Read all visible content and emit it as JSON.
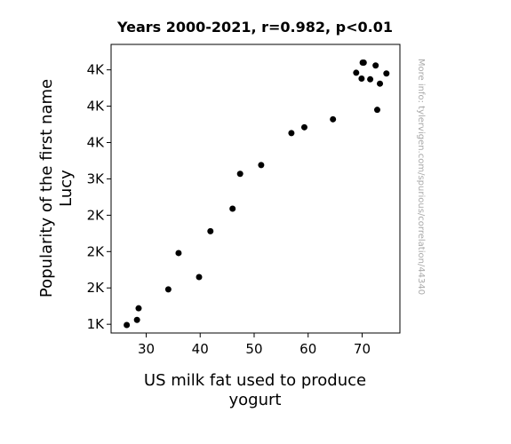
{
  "chart_data": {
    "type": "scatter",
    "title": "Years 2000-2021, r=0.982, p<0.01",
    "xlabel": [
      "US milk fat used to produce",
      "yogurt"
    ],
    "ylabel": [
      "Popularity of the first name",
      "Lucy"
    ],
    "xlim": [
      23.5,
      77
    ],
    "ylim": [
      880,
      4850
    ],
    "x_ticks": [
      {
        "value": 30,
        "label": "30"
      },
      {
        "value": 40,
        "label": "40"
      },
      {
        "value": 50,
        "label": "50"
      },
      {
        "value": 60,
        "label": "60"
      },
      {
        "value": 70,
        "label": "70"
      }
    ],
    "y_ticks": [
      {
        "value": 1000,
        "label": "1K"
      },
      {
        "value": 1500,
        "label": "2K"
      },
      {
        "value": 2000,
        "label": "2K"
      },
      {
        "value": 2500,
        "label": "2K"
      },
      {
        "value": 3000,
        "label": "3K"
      },
      {
        "value": 3500,
        "label": "4K"
      },
      {
        "value": 4000,
        "label": "4K"
      },
      {
        "value": 4500,
        "label": "4K"
      }
    ],
    "points": [
      {
        "x": 26.4,
        "y": 990
      },
      {
        "x": 28.3,
        "y": 1060
      },
      {
        "x": 28.6,
        "y": 1220
      },
      {
        "x": 34.1,
        "y": 1480
      },
      {
        "x": 36.0,
        "y": 1980
      },
      {
        "x": 39.8,
        "y": 1650
      },
      {
        "x": 41.9,
        "y": 2280
      },
      {
        "x": 46.0,
        "y": 2590
      },
      {
        "x": 47.4,
        "y": 3070
      },
      {
        "x": 51.3,
        "y": 3190
      },
      {
        "x": 56.9,
        "y": 3630
      },
      {
        "x": 59.3,
        "y": 3710
      },
      {
        "x": 64.6,
        "y": 3820
      },
      {
        "x": 68.9,
        "y": 4460
      },
      {
        "x": 69.9,
        "y": 4380
      },
      {
        "x": 70.1,
        "y": 4600
      },
      {
        "x": 70.3,
        "y": 4600
      },
      {
        "x": 71.5,
        "y": 4370
      },
      {
        "x": 72.5,
        "y": 4560
      },
      {
        "x": 72.8,
        "y": 3950
      },
      {
        "x": 73.3,
        "y": 4310
      },
      {
        "x": 74.5,
        "y": 4450
      }
    ],
    "grid": false,
    "legend": "none"
  },
  "watermark": "More info: tylervigen.com/spurious/correlation/44340"
}
